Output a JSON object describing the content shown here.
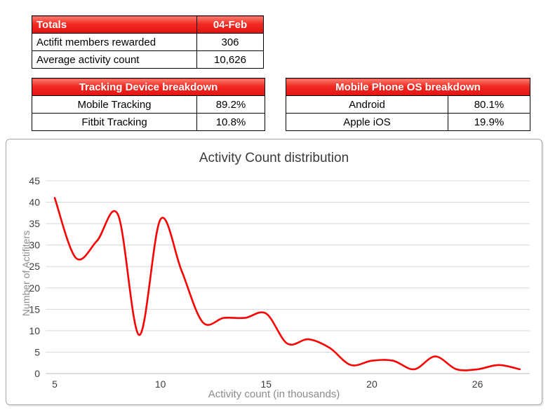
{
  "tables": {
    "totals": {
      "header": {
        "label": "Totals",
        "value": "04-Feb"
      },
      "rows": [
        {
          "label": "Actifit members rewarded",
          "value": "306"
        },
        {
          "label": "Average activity count",
          "value": "10,626"
        }
      ]
    },
    "tracking": {
      "header": "Tracking Device breakdown",
      "rows": [
        {
          "label": "Mobile Tracking",
          "value": "89.2%"
        },
        {
          "label": "Fitbit Tracking",
          "value": "10.8%"
        }
      ]
    },
    "os": {
      "header": "Mobile Phone OS breakdown",
      "rows": [
        {
          "label": "Android",
          "value": "80.1%"
        },
        {
          "label": "Apple iOS",
          "value": "19.9%"
        }
      ]
    }
  },
  "chart_data": {
    "type": "line",
    "title": "Activity Count distribution",
    "xlabel": "Activity count (in thousands)",
    "ylabel": "Number of Actifiters",
    "x": [
      5,
      6,
      7,
      8,
      9,
      10,
      11,
      12,
      13,
      14,
      15,
      16,
      17,
      18,
      19,
      20,
      21,
      22,
      23,
      25,
      26,
      27,
      28
    ],
    "values": [
      41,
      27,
      31,
      37,
      9,
      36,
      24,
      12,
      13,
      13,
      14,
      7,
      8,
      6,
      2,
      3,
      3,
      1,
      4,
      1,
      1,
      2,
      1
    ],
    "ylim": [
      0,
      45
    ],
    "ytick_step": 5,
    "xtick_indexes": [
      0,
      5,
      10,
      15,
      20
    ],
    "xtick_labels": [
      "5",
      "10",
      "15",
      "20",
      "26"
    ],
    "line_color": "#ff0000",
    "grid": true,
    "smooth": true,
    "legend": "none"
  },
  "colors": {
    "header_red": "#e81616",
    "gridline": "#d9d9d9",
    "axis_line": "#bfbfbf",
    "tick_text": "#3d3d3d",
    "axis_title_text": "#8c8c8c"
  }
}
